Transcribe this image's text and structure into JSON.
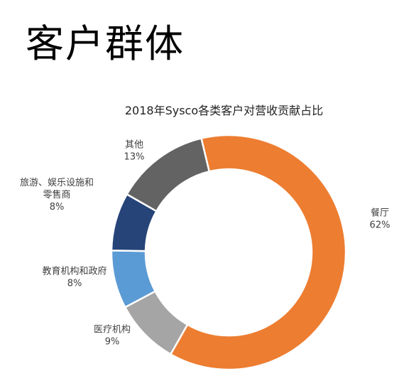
{
  "page": {
    "title": "客户群体"
  },
  "chart_data": {
    "type": "pie",
    "style": "donut",
    "title": "2018年Sysco各类客户对营收贡献占比",
    "categories": [
      "餐厅",
      "医疗机构",
      "教育机构和政府",
      "旅游、娱乐设施和零售商",
      "其他"
    ],
    "values": [
      62,
      9,
      8,
      8,
      13
    ],
    "value_labels": [
      "62%",
      "9%",
      "8%",
      "8%",
      "13%"
    ],
    "colors": [
      "#ED7D31",
      "#A5A5A5",
      "#5B9BD5",
      "#264478",
      "#636363"
    ],
    "label_lines": [
      [
        "餐厅",
        "62%"
      ],
      [
        "医疗机构",
        "9%"
      ],
      [
        "教育机构和政府",
        "8%"
      ],
      [
        "旅游、娱乐设施和",
        "零售商",
        "8%"
      ],
      [
        "其他",
        "13%"
      ]
    ],
    "legend": "none"
  }
}
